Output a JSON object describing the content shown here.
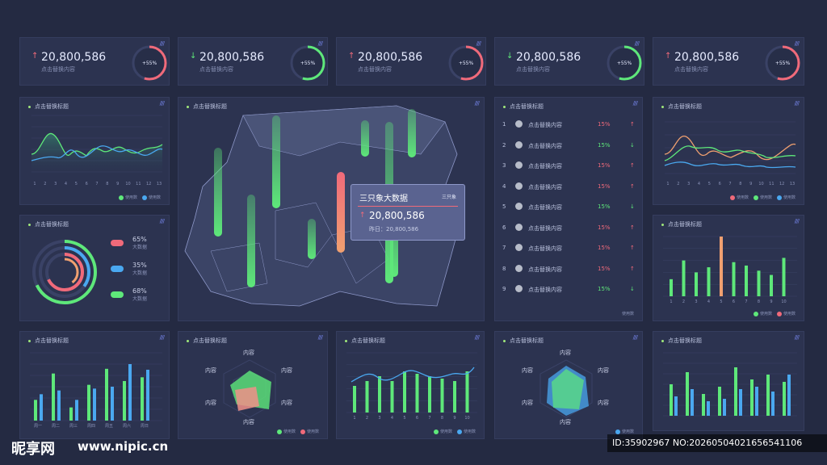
{
  "kpis": [
    {
      "value": "20,800,586",
      "label": "点击替换内容",
      "pct": "+55%",
      "dir": "up"
    },
    {
      "value": "20,800,586",
      "label": "点击替换内容",
      "pct": "+55%",
      "dir": "down"
    },
    {
      "value": "20,800,586",
      "label": "点击替换内容",
      "pct": "+55%",
      "dir": "up"
    },
    {
      "value": "20,800,586",
      "label": "点击替换内容",
      "pct": "+55%",
      "dir": "down"
    },
    {
      "value": "20,800,586",
      "label": "点击替换内容",
      "pct": "+55%",
      "dir": "up"
    }
  ],
  "panel_title": "点击替换标题",
  "slash": "////",
  "legend": {
    "used": "使用数",
    "used2": "使用数"
  },
  "line_x": [
    "1",
    "2",
    "3",
    "4",
    "5",
    "6",
    "7",
    "8",
    "9",
    "10",
    "11",
    "12",
    "13"
  ],
  "donut": {
    "items": [
      {
        "pct": "65%",
        "label": "大数据"
      },
      {
        "pct": "35%",
        "label": "大数据"
      },
      {
        "pct": "68%",
        "label": "大数据"
      }
    ]
  },
  "map": {
    "tooltip": {
      "title": "三只象大数据",
      "tag": "三只象",
      "value": "20,800,586",
      "yesterday": "昨日：20,800,586"
    }
  },
  "ranking": [
    {
      "n": "1",
      "label": "点击替换内容",
      "pct": "15%",
      "dir": "up"
    },
    {
      "n": "2",
      "label": "点击替换内容",
      "pct": "15%",
      "dir": "down"
    },
    {
      "n": "3",
      "label": "点击替换内容",
      "pct": "15%",
      "dir": "up"
    },
    {
      "n": "4",
      "label": "点击替换内容",
      "pct": "15%",
      "dir": "up"
    },
    {
      "n": "5",
      "label": "点击替换内容",
      "pct": "15%",
      "dir": "down"
    },
    {
      "n": "6",
      "label": "点击替换内容",
      "pct": "15%",
      "dir": "up"
    },
    {
      "n": "7",
      "label": "点击替换内容",
      "pct": "15%",
      "dir": "up"
    },
    {
      "n": "8",
      "label": "点击替换内容",
      "pct": "15%",
      "dir": "up"
    },
    {
      "n": "9",
      "label": "点击替换内容",
      "pct": "15%",
      "dir": "down"
    }
  ],
  "ranking_legend": "使用数",
  "bar_x10": [
    "1",
    "2",
    "3",
    "4",
    "5",
    "6",
    "7",
    "8",
    "9",
    "10"
  ],
  "week": [
    "周一",
    "周二",
    "周三",
    "周四",
    "周五",
    "周六",
    "周日"
  ],
  "radar_label": "内容",
  "watermark": {
    "logo": "昵享网",
    "url": "www.nipic.cn",
    "id": "ID:35902967 NO:20260504021656541106"
  },
  "colors": {
    "green": "#5ee87a",
    "blue": "#4aa8f0",
    "red": "#f06a7a",
    "orange": "#f0a070",
    "bg": "#242a42"
  },
  "chart_data": [
    {
      "type": "bar",
      "categories": [
        "1",
        "2",
        "3",
        "4",
        "5",
        "6",
        "7",
        "8",
        "9",
        "10"
      ],
      "series": [
        {
          "name": "使用数",
          "values": [
            20,
            42,
            28,
            34,
            70,
            40,
            36,
            30,
            25,
            45
          ]
        }
      ]
    },
    {
      "type": "bar",
      "categories": [
        "周一",
        "周二",
        "周三",
        "周四",
        "周五",
        "周六",
        "周日"
      ],
      "series": [
        {
          "values": [
            22,
            50,
            14,
            38,
            55,
            42,
            46
          ]
        },
        {
          "values": [
            28,
            32,
            22,
            34,
            36,
            60,
            54
          ]
        }
      ]
    }
  ]
}
